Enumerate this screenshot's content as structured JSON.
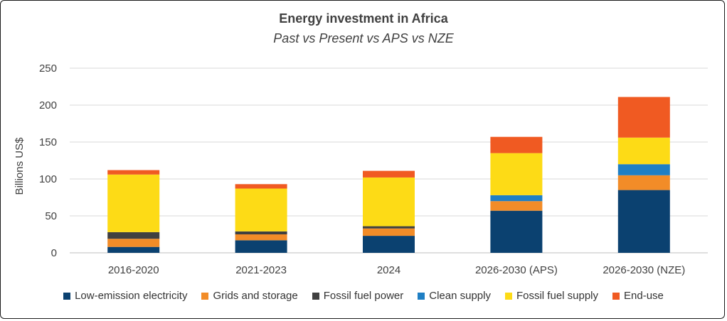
{
  "chart_data": {
    "type": "bar",
    "stacked": true,
    "title": "Energy investment in Africa",
    "subtitle": "Past vs Present vs APS vs NZE",
    "xlabel": "",
    "ylabel": "Billions US$",
    "ylim": [
      0,
      250
    ],
    "yticks": [
      0,
      50,
      100,
      150,
      200,
      250
    ],
    "grid": true,
    "legend_position": "bottom",
    "categories": [
      "2016-2020",
      "2021-2023",
      "2024",
      "2026-2030 (APS)",
      "2026-2030 (NZE)"
    ],
    "series": [
      {
        "name": "Low-emission electricity",
        "color": "#0b4170",
        "values": [
          8,
          17,
          23,
          57,
          85
        ]
      },
      {
        "name": "Grids and storage",
        "color": "#f28c28",
        "values": [
          11,
          8,
          10,
          13,
          20
        ]
      },
      {
        "name": "Fossil fuel power",
        "color": "#404040",
        "values": [
          9,
          4,
          3,
          0,
          0
        ]
      },
      {
        "name": "Clean supply",
        "color": "#1f7fc4",
        "values": [
          0,
          0,
          0,
          8,
          15
        ]
      },
      {
        "name": "Fossil fuel supply",
        "color": "#fddb16",
        "values": [
          78,
          58,
          66,
          57,
          36
        ]
      },
      {
        "name": "End-use",
        "color": "#f05a22",
        "values": [
          6,
          6,
          9,
          22,
          55
        ]
      }
    ]
  }
}
